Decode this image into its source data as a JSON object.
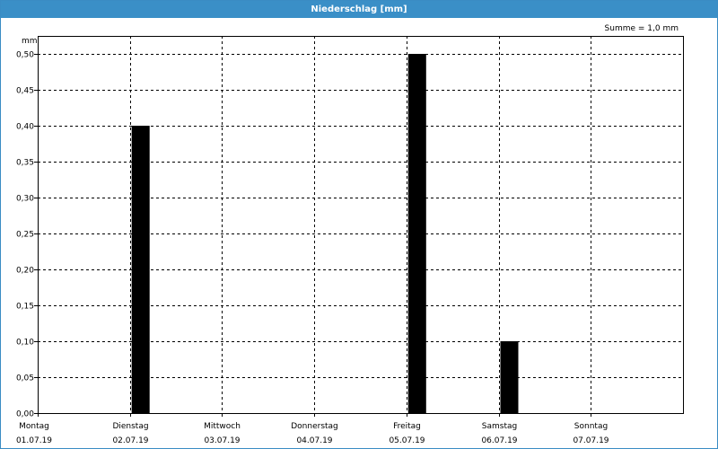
{
  "window": {
    "title": "Niederschlag [mm]"
  },
  "chart_data": {
    "type": "bar",
    "ylabel": "mm",
    "summary": "Summe = 1,0 mm",
    "ylim": [
      0,
      0.5
    ],
    "y_ticks": [
      "0,00",
      "0,05",
      "0,10",
      "0,15",
      "0,20",
      "0,25",
      "0,30",
      "0,35",
      "0,40",
      "0,45",
      "0,50"
    ],
    "x_days": [
      {
        "day": "Montag",
        "date": "01.07.19"
      },
      {
        "day": "Dienstag",
        "date": "02.07.19"
      },
      {
        "day": "Mittwoch",
        "date": "03.07.19"
      },
      {
        "day": "Donnerstag",
        "date": "04.07.19"
      },
      {
        "day": "Freitag",
        "date": "05.07.19"
      },
      {
        "day": "Samstag",
        "date": "06.07.19"
      },
      {
        "day": "Sonntag",
        "date": "07.07.19"
      }
    ],
    "bars": [
      {
        "date": "02.07.19",
        "value": 0.4
      },
      {
        "date": "05.07.19",
        "value": 0.5
      },
      {
        "date": "06.07.19",
        "value": 0.1
      }
    ],
    "grid": true,
    "colors": {
      "bar": "#000000",
      "titlebar": "#3a8fc7"
    }
  }
}
